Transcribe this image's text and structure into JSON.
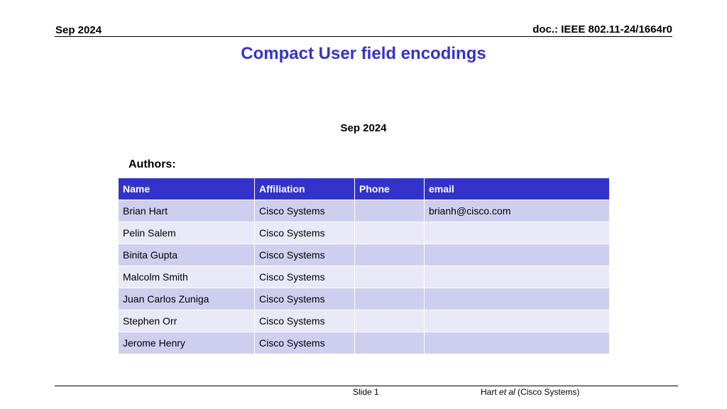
{
  "header": {
    "date": "Sep 2024",
    "doc": "doc.: IEEE 802.11-24/1664r0"
  },
  "title": "Compact User field encodings",
  "date": "Sep 2024",
  "authors_label": "Authors:",
  "table": {
    "columns": [
      "Name",
      "Affiliation",
      "Phone",
      "email"
    ],
    "rows": [
      [
        "Brian Hart",
        "Cisco Systems",
        "",
        "brianh@cisco.com"
      ],
      [
        "Pelin Salem",
        "Cisco Systems",
        "",
        ""
      ],
      [
        "Binita Gupta",
        "Cisco Systems",
        "",
        ""
      ],
      [
        "Malcolm Smith",
        "Cisco Systems",
        "",
        ""
      ],
      [
        "Juan Carlos Zuniga",
        "Cisco Systems",
        "",
        ""
      ],
      [
        "Stephen Orr",
        "Cisco Systems",
        "",
        ""
      ],
      [
        "Jerome Henry",
        "Cisco Systems",
        "",
        ""
      ]
    ]
  },
  "footer": {
    "slide": "Slide 1",
    "author_name": "Hart",
    "author_etal": "et al",
    "author_org": "(Cisco Systems)"
  },
  "colors": {
    "accent": "#3333cc",
    "row_odd": "#cecfee",
    "row_even": "#e8e8f6"
  }
}
